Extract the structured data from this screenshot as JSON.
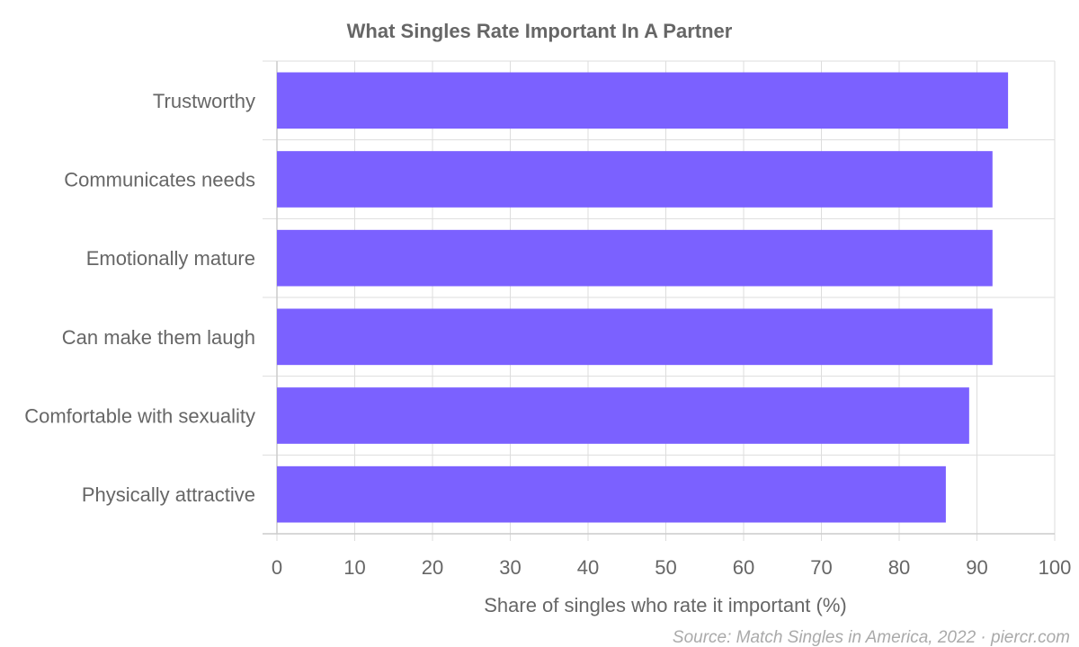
{
  "chart_data": {
    "type": "bar",
    "orientation": "horizontal",
    "title": "What Singles Rate Important In A Partner",
    "xlabel": "Share of singles who rate it important (%)",
    "ylabel": "",
    "categories": [
      "Trustworthy",
      "Communicates needs",
      "Emotionally mature",
      "Can make them laugh",
      "Comfortable with sexuality",
      "Physically attractive"
    ],
    "values": [
      94,
      92,
      92,
      92,
      89,
      86
    ],
    "xlim": [
      0,
      100
    ],
    "xticks": [
      "0",
      "10",
      "20",
      "30",
      "40",
      "50",
      "60",
      "70",
      "80",
      "90",
      "100"
    ],
    "grid": true,
    "bar_color": "#7b61ff",
    "source": "Source: Match Singles in America, 2022 · piercr.com"
  }
}
